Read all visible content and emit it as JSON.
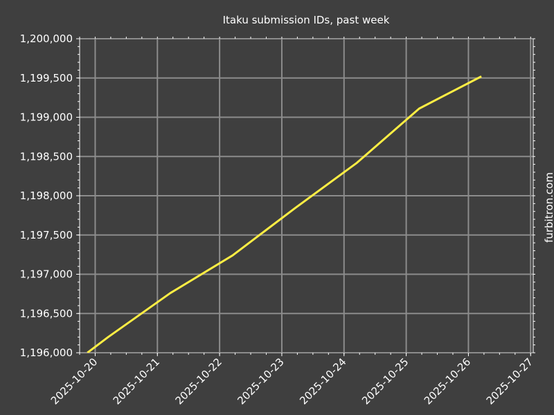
{
  "watermark": "furbitron.com",
  "chart_data": {
    "type": "line",
    "title": "Itaku submission IDs, past week",
    "xlabel": "",
    "ylabel": "",
    "ylim": [
      1196000,
      1200000
    ],
    "xlim": [
      "2025-10-19 18:00",
      "2025-10-27 01:00"
    ],
    "grid": true,
    "line_color": "#ffee44",
    "background_color": "#3f3f3f",
    "grid_color": "#8c8c8c",
    "yticks": [
      1196000,
      1196500,
      1197000,
      1197500,
      1198000,
      1198500,
      1199000,
      1199500,
      1200000
    ],
    "ytick_labels": [
      "1,196,000",
      "1,196,500",
      "1,197,000",
      "1,197,500",
      "1,198,000",
      "1,198,500",
      "1,199,000",
      "1,199,500",
      "1,200,000"
    ],
    "xticks": [
      "2025-10-20",
      "2025-10-21",
      "2025-10-22",
      "2025-10-23",
      "2025-10-24",
      "2025-10-25",
      "2025-10-26",
      "2025-10-27"
    ],
    "series": [
      {
        "x": [
          "2025-10-19 21:00",
          "2025-10-20 05:00",
          "2025-10-21 05:00",
          "2025-10-22 05:00",
          "2025-10-23 05:00",
          "2025-10-24 05:00",
          "2025-10-25 05:00",
          "2025-10-26 05:00"
        ],
        "y": [
          1196000,
          1196200,
          1196760,
          1197240,
          1197840,
          1198420,
          1199110,
          1199520
        ]
      }
    ]
  }
}
